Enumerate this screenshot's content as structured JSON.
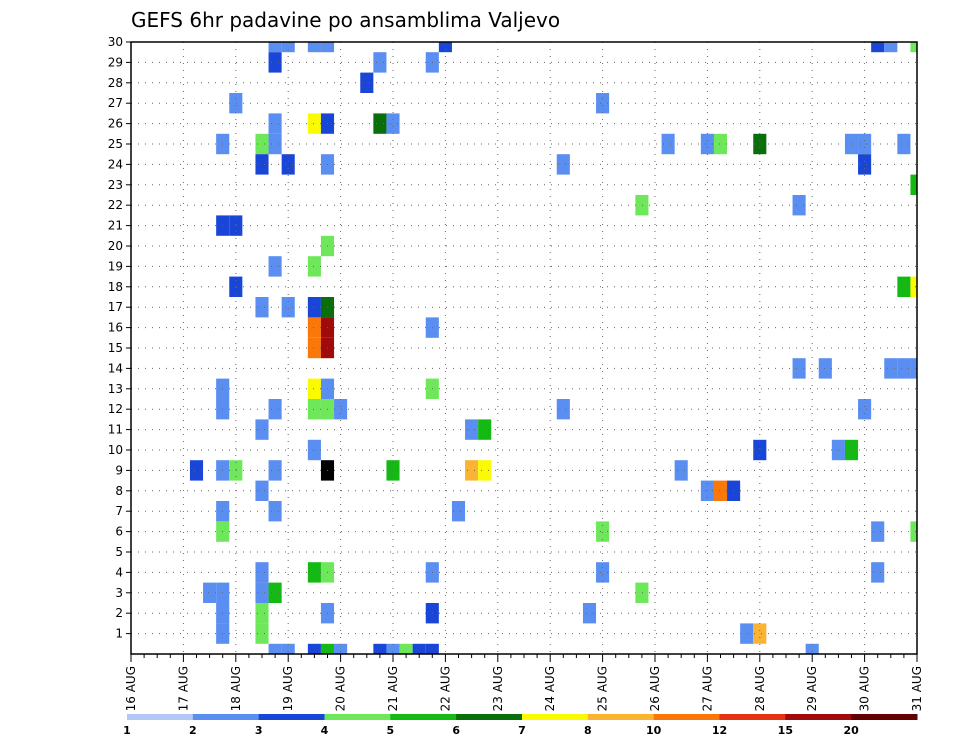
{
  "chart_data": {
    "type": "heatmap",
    "title": "GEFS 6hr padavine po ansamblima Valjevo",
    "x_unit": "6h",
    "xlim": [
      0,
      60
    ],
    "ylim": [
      0,
      30
    ],
    "x_ticks": [
      {
        "x": 0,
        "label": "16 AUG"
      },
      {
        "x": 4,
        "label": "17 AUG"
      },
      {
        "x": 8,
        "label": "18 AUG"
      },
      {
        "x": 12,
        "label": "19 AUG"
      },
      {
        "x": 16,
        "label": "20 AUG"
      },
      {
        "x": 20,
        "label": "21 AUG"
      },
      {
        "x": 24,
        "label": "22 AUG"
      },
      {
        "x": 28,
        "label": "23 AUG"
      },
      {
        "x": 32,
        "label": "24 AUG"
      },
      {
        "x": 36,
        "label": "25 AUG"
      },
      {
        "x": 40,
        "label": "26 AUG"
      },
      {
        "x": 44,
        "label": "27 AUG"
      },
      {
        "x": 48,
        "label": "28 AUG"
      },
      {
        "x": 52,
        "label": "29 AUG"
      },
      {
        "x": 56,
        "label": "30 AUG"
      },
      {
        "x": 60,
        "label": "31 AUG"
      }
    ],
    "y_ticks": [
      1,
      2,
      3,
      4,
      5,
      6,
      7,
      8,
      9,
      10,
      11,
      12,
      13,
      14,
      15,
      16,
      17,
      18,
      19,
      20,
      21,
      22,
      23,
      24,
      25,
      26,
      27,
      28,
      29,
      30
    ],
    "grid": true,
    "colorbar": {
      "colors": [
        "#b4c8f5",
        "#5a8ef0",
        "#1a46d8",
        "#6ee85a",
        "#14b914",
        "#0a6e0a",
        "#fafa00",
        "#fab432",
        "#fa780a",
        "#e63214",
        "#a00a0a",
        "#640000"
      ],
      "labels": [
        "1",
        "2",
        "3",
        "4",
        "5",
        "6",
        "7",
        "8",
        "10",
        "12",
        "15",
        "20"
      ]
    },
    "cells": [
      [
        11,
        30,
        1
      ],
      [
        12,
        30,
        1
      ],
      [
        14,
        30,
        1
      ],
      [
        15,
        30,
        1
      ],
      [
        24,
        30,
        2
      ],
      [
        57,
        30,
        2
      ],
      [
        58,
        30,
        1
      ],
      [
        60,
        30,
        3
      ],
      [
        11,
        29,
        2
      ],
      [
        19,
        29,
        1
      ],
      [
        23,
        29,
        1
      ],
      [
        18,
        28,
        2
      ],
      [
        8,
        27,
        1
      ],
      [
        36,
        27,
        1
      ],
      [
        14,
        26,
        6
      ],
      [
        15,
        26,
        2
      ],
      [
        11,
        26,
        1
      ],
      [
        19,
        26,
        5
      ],
      [
        20,
        26,
        1
      ],
      [
        7,
        25,
        1
      ],
      [
        10,
        25,
        3
      ],
      [
        11,
        25,
        1
      ],
      [
        41,
        25,
        1
      ],
      [
        44,
        25,
        1
      ],
      [
        45,
        25,
        3
      ],
      [
        48,
        25,
        5
      ],
      [
        55,
        25,
        1
      ],
      [
        56,
        25,
        1
      ],
      [
        59,
        25,
        1
      ],
      [
        10,
        24,
        2
      ],
      [
        12,
        24,
        2
      ],
      [
        15,
        24,
        1
      ],
      [
        33,
        24,
        1
      ],
      [
        56,
        24,
        2
      ],
      [
        60,
        23,
        4
      ],
      [
        39,
        22,
        3
      ],
      [
        51,
        22,
        1
      ],
      [
        7,
        21,
        2
      ],
      [
        8,
        21,
        2
      ],
      [
        15,
        20,
        3
      ],
      [
        11,
        19,
        1
      ],
      [
        14,
        19,
        3
      ],
      [
        8,
        18,
        2
      ],
      [
        59,
        18,
        4
      ],
      [
        60,
        18,
        6
      ],
      [
        10,
        17,
        1
      ],
      [
        12,
        17,
        1
      ],
      [
        14,
        17,
        2
      ],
      [
        15,
        17,
        5
      ],
      [
        14,
        16,
        8
      ],
      [
        15,
        16,
        10
      ],
      [
        14,
        15,
        8
      ],
      [
        15,
        15,
        10
      ],
      [
        23,
        16,
        1
      ],
      [
        51,
        14,
        1
      ],
      [
        53,
        14,
        1
      ],
      [
        58,
        14,
        1
      ],
      [
        59,
        14,
        1
      ],
      [
        60,
        14,
        1
      ],
      [
        7,
        13,
        1
      ],
      [
        14,
        13,
        6
      ],
      [
        15,
        13,
        1
      ],
      [
        23,
        13,
        3
      ],
      [
        7,
        12,
        1
      ],
      [
        11,
        12,
        1
      ],
      [
        14,
        12,
        3
      ],
      [
        15,
        12,
        3
      ],
      [
        16,
        12,
        1
      ],
      [
        33,
        12,
        1
      ],
      [
        56,
        12,
        1
      ],
      [
        10,
        11,
        1
      ],
      [
        26,
        11,
        1
      ],
      [
        27,
        11,
        4
      ],
      [
        14,
        10,
        1
      ],
      [
        48,
        10,
        2
      ],
      [
        54,
        10,
        1
      ],
      [
        55,
        10,
        4
      ],
      [
        5,
        9,
        2
      ],
      [
        7,
        9,
        1
      ],
      [
        8,
        9,
        3
      ],
      [
        11,
        9,
        1
      ],
      [
        15,
        9,
        12
      ],
      [
        20,
        9,
        4
      ],
      [
        26,
        9,
        7
      ],
      [
        27,
        9,
        6
      ],
      [
        42,
        9,
        1
      ],
      [
        10,
        8,
        1
      ],
      [
        44,
        8,
        1
      ],
      [
        45,
        8,
        8
      ],
      [
        46,
        8,
        2
      ],
      [
        7,
        7,
        1
      ],
      [
        11,
        7,
        1
      ],
      [
        25,
        7,
        1
      ],
      [
        7,
        6,
        3
      ],
      [
        36,
        6,
        3
      ],
      [
        57,
        6,
        1
      ],
      [
        60,
        6,
        3
      ],
      [
        10,
        4,
        1
      ],
      [
        14,
        4,
        4
      ],
      [
        15,
        4,
        3
      ],
      [
        23,
        4,
        1
      ],
      [
        36,
        4,
        1
      ],
      [
        57,
        4,
        1
      ],
      [
        6,
        3,
        1
      ],
      [
        7,
        3,
        1
      ],
      [
        10,
        3,
        1
      ],
      [
        11,
        3,
        4
      ],
      [
        39,
        3,
        3
      ],
      [
        7,
        2,
        1
      ],
      [
        10,
        2,
        3
      ],
      [
        15,
        2,
        1
      ],
      [
        23,
        2,
        2
      ],
      [
        35,
        2,
        1
      ],
      [
        7,
        1,
        1
      ],
      [
        10,
        1,
        3
      ],
      [
        47,
        1,
        1
      ],
      [
        48,
        1,
        7
      ],
      [
        11,
        0,
        1
      ],
      [
        12,
        0,
        1
      ],
      [
        14,
        0,
        2
      ],
      [
        15,
        0,
        4
      ],
      [
        16,
        0,
        1
      ],
      [
        19,
        0,
        2
      ],
      [
        20,
        0,
        1
      ],
      [
        21,
        0,
        3
      ],
      [
        22,
        0,
        2
      ],
      [
        23,
        0,
        2
      ],
      [
        52,
        0,
        1
      ]
    ]
  }
}
